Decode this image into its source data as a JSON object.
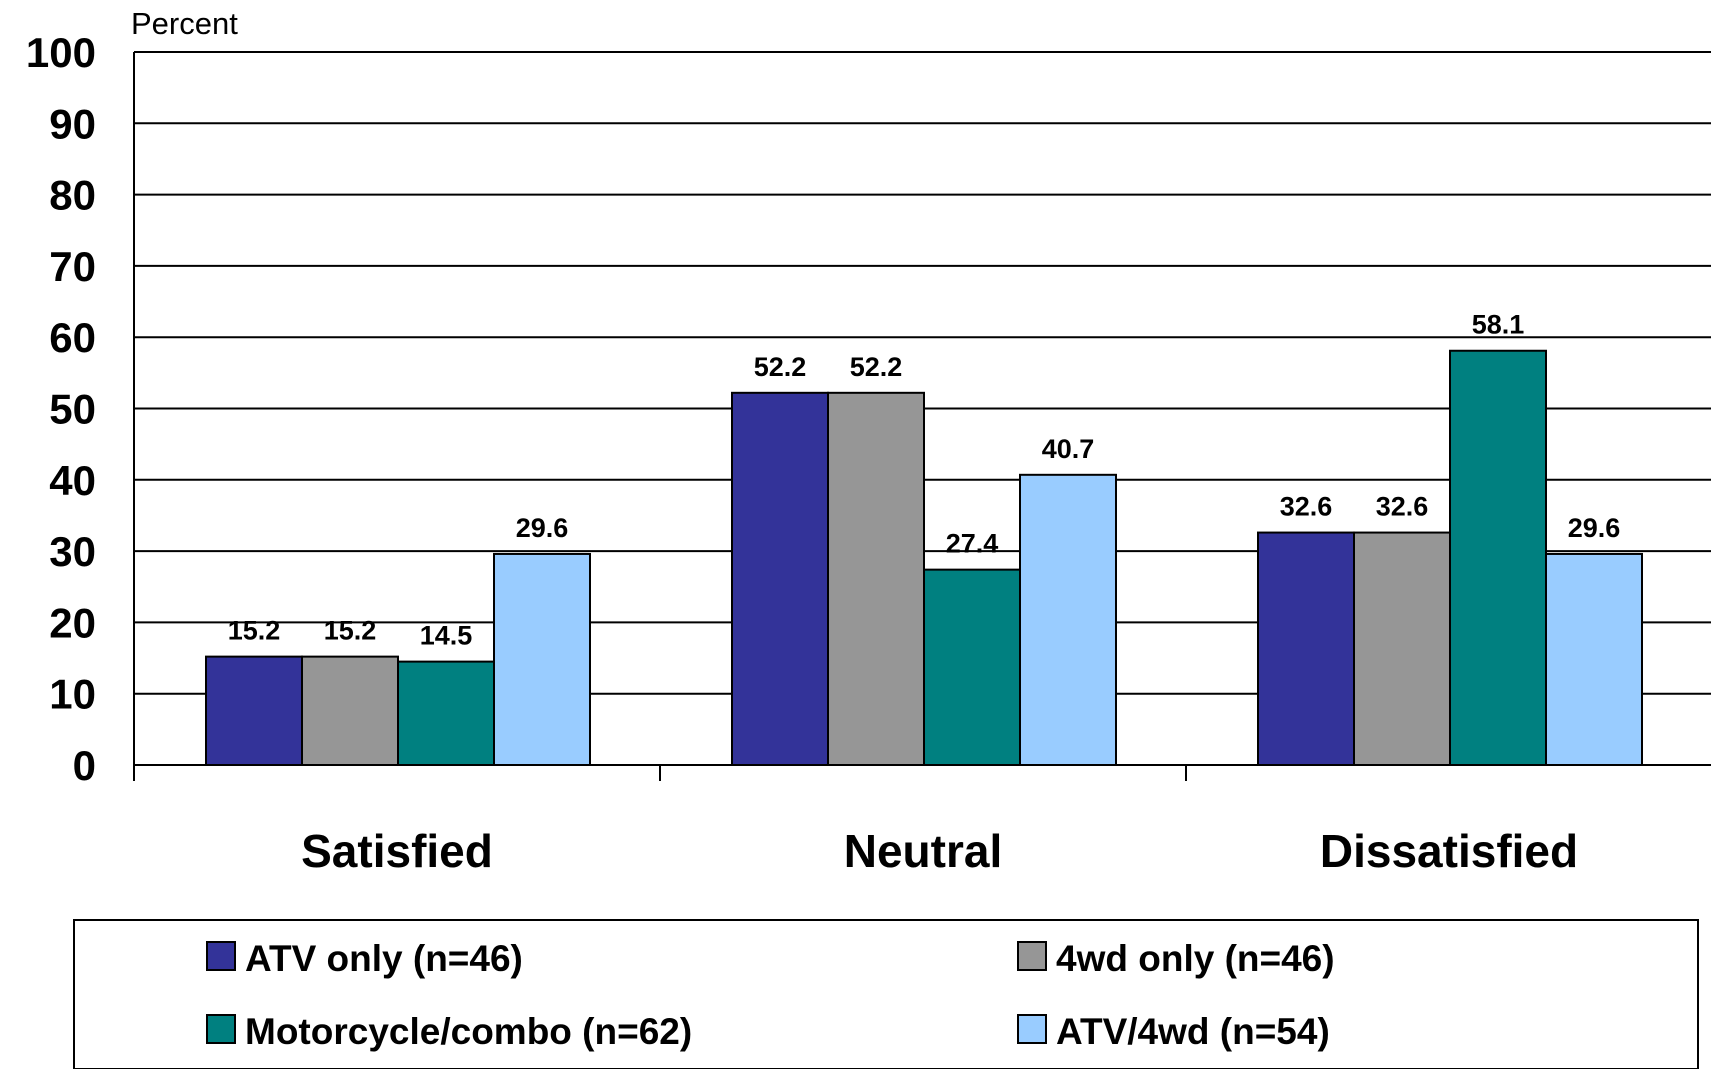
{
  "chart_data": {
    "type": "bar",
    "ylabel": "Percent",
    "xlabel": "",
    "ylim": [
      0,
      100
    ],
    "yticks": [
      0,
      10,
      20,
      30,
      40,
      50,
      60,
      70,
      80,
      90,
      100
    ],
    "grid": true,
    "legend_position": "bottom",
    "categories": [
      "Satisfied",
      "Neutral",
      "Dissatisfied"
    ],
    "series": [
      {
        "name": "ATV only (n=46)",
        "color": "#333399",
        "values": [
          15.2,
          52.2,
          32.6
        ]
      },
      {
        "name": "4wd only (n=46)",
        "color": "#969696",
        "values": [
          15.2,
          52.2,
          32.6
        ]
      },
      {
        "name": "Motorcycle/combo (n=62)",
        "color": "#008080",
        "values": [
          14.5,
          27.4,
          58.1
        ]
      },
      {
        "name": "ATV/4wd (n=54)",
        "color": "#99CCFF",
        "values": [
          29.6,
          40.7,
          29.6
        ]
      }
    ]
  }
}
